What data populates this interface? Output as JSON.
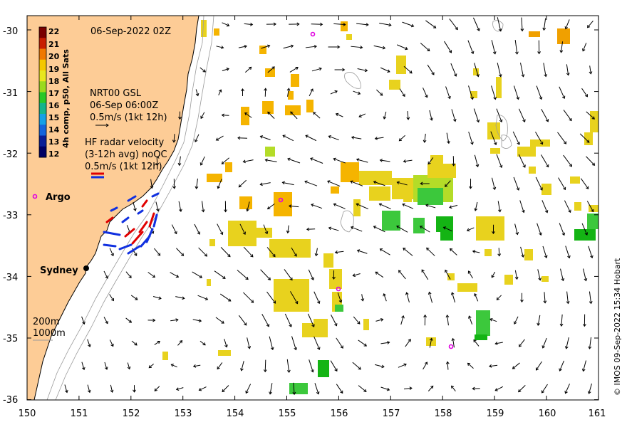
{
  "title_timestamp": "06-Sep-2022 02Z",
  "x_ticks": [
    "150",
    "151",
    "152",
    "153",
    "154",
    "155",
    "156",
    "157",
    "158",
    "159",
    "160",
    "161"
  ],
  "y_ticks": [
    "-30",
    "-31",
    "-32",
    "-33",
    "-34",
    "-35",
    "-36"
  ],
  "colorbar": {
    "title": "4h comp, p50, All Sats",
    "labels": [
      "22",
      "21",
      "20",
      "19",
      "18",
      "17",
      "16",
      "15",
      "14",
      "13",
      "12"
    ]
  },
  "legend": {
    "current_source": "NRT00 GSL",
    "current_time": "06-Sep 06:00Z",
    "current_scale": "0.5m/s (1kt 12h)",
    "radar_title": "HF radar velocity",
    "radar_avg": "(3-12h avg) noQC",
    "radar_scale": "0.5m/s (1kt 12h)",
    "depth_200": "200m",
    "depth_1000": "1000m"
  },
  "places": {
    "argo": "Argo",
    "sydney": "Sydney"
  },
  "credit": "© IMOS 09-Sep-2022 15:34 Hobart",
  "colors": {
    "land": "#fdcc96",
    "argo_marker": "#e000e0",
    "radar_red": "#e00000",
    "radar_blue": "#1030e0",
    "colorbar_stops": [
      "#7a0000",
      "#c81e00",
      "#f07800",
      "#f5c800",
      "#e8e61e",
      "#9ada1e",
      "#28c828",
      "#14b48c",
      "#14a0e6",
      "#1464dc",
      "#0a1e96",
      "#000064"
    ]
  }
}
